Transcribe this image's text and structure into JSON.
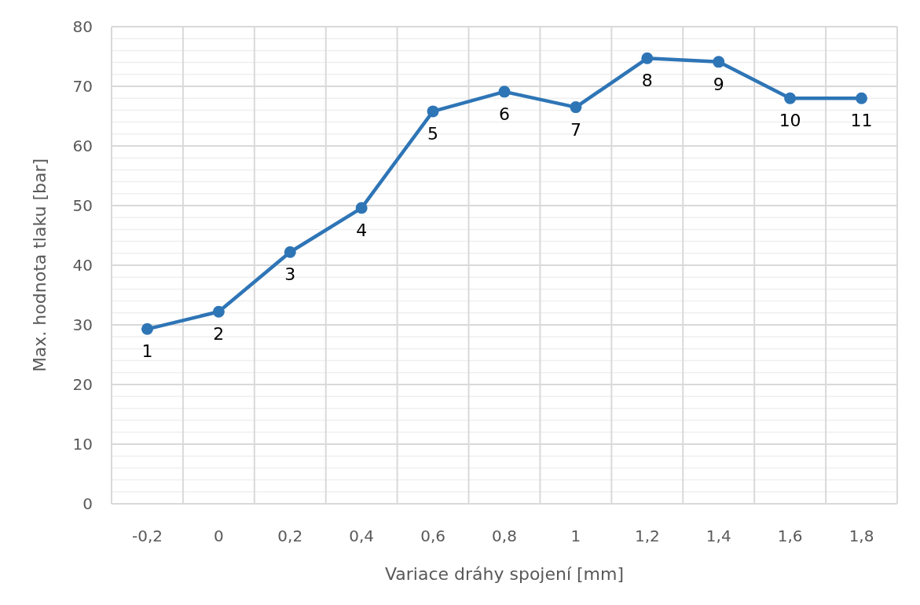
{
  "chart_data": {
    "type": "line",
    "xlabel": "Variace dráhy spojení [mm]",
    "ylabel": "Max. hodnota tlaku [bar]",
    "categories": [
      "-0,2",
      "0",
      "0,2",
      "0,4",
      "0,6",
      "0,8",
      "1",
      "1,2",
      "1,4",
      "1,6",
      "1,8"
    ],
    "series": [
      {
        "color": "#2e75b6",
        "values": [
          29.3,
          32.2,
          42.2,
          49.6,
          65.8,
          69.1,
          66.5,
          74.7,
          74.1,
          68,
          68
        ]
      }
    ],
    "ylim": [
      0,
      80
    ],
    "yticks": [
      0,
      {
        "value": 2,
        "label": null
      },
      {
        "value": 4,
        "label": null
      },
      {
        "value": 6,
        "label": null
      },
      {
        "value": 8,
        "label": null
      },
      10,
      {
        "value": 12,
        "label": null
      },
      {
        "value": 14,
        "label": null
      },
      {
        "value": 16,
        "label": null
      },
      {
        "value": 18,
        "label": null
      },
      20,
      {
        "value": 22,
        "label": null
      },
      {
        "value": 24,
        "label": null
      },
      {
        "value": 26,
        "label": null
      },
      {
        "value": 28,
        "label": null
      },
      30,
      {
        "value": 32,
        "label": null
      },
      {
        "value": 34,
        "label": null
      },
      {
        "value": 36,
        "label": null
      },
      {
        "value": 38,
        "label": null
      },
      40,
      {
        "value": 42,
        "label": null
      },
      {
        "value": 44,
        "label": null
      },
      {
        "value": 46,
        "label": null
      },
      {
        "value": 48,
        "label": null
      },
      50,
      {
        "value": 52,
        "label": null
      },
      {
        "value": 54,
        "label": null
      },
      {
        "value": 56,
        "label": null
      },
      {
        "value": 58,
        "label": null
      },
      60,
      {
        "value": 62,
        "label": null
      },
      {
        "value": 64,
        "label": null
      },
      {
        "value": 66,
        "label": null
      },
      {
        "value": 68,
        "label": null
      },
      70,
      {
        "value": 72,
        "label": null
      },
      {
        "value": 74,
        "label": null
      },
      {
        "value": 76,
        "label": null
      },
      {
        "value": 78,
        "label": null
      },
      80
    ],
    "grid": true,
    "marker": "circle",
    "line_style": "solid",
    "annotations": [
      {
        "text": "1",
        "x": "-0,2",
        "y": 29.3
      },
      {
        "text": "2",
        "x": "0",
        "y": 32.2
      },
      {
        "text": "3",
        "x": "0,2",
        "y": 42.2
      },
      {
        "text": "4",
        "x": "0,4",
        "y": 49.6
      },
      {
        "text": "5",
        "x": "0,6",
        "y": 65.8
      },
      {
        "text": "6",
        "x": "0,8",
        "y": 69.1
      },
      {
        "text": "7",
        "x": "1",
        "y": 66.5
      },
      {
        "text": "8",
        "x": "1,2",
        "y": 74.7
      },
      {
        "text": "9",
        "x": "1,4",
        "y": 74.1
      },
      {
        "text": "10",
        "x": "1,6",
        "y": 68
      },
      {
        "text": "11",
        "x": "1,8",
        "y": 68
      }
    ]
  }
}
